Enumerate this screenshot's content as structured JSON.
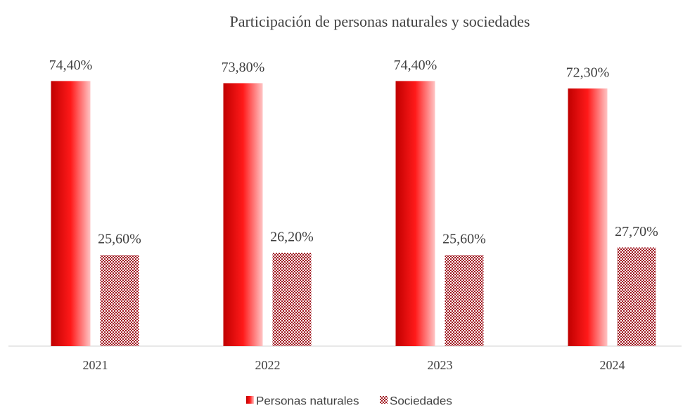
{
  "chart_data": {
    "type": "bar",
    "title": "Participación de personas naturales y sociedades",
    "categories": [
      "2021",
      "2022",
      "2023",
      "2024"
    ],
    "series": [
      {
        "name": "Personas naturales",
        "color": "#e00000",
        "values": [
          74.4,
          73.8,
          74.4,
          72.3
        ],
        "value_labels": [
          "74,40%",
          "73,80%",
          "74,40%",
          "72,30%"
        ]
      },
      {
        "name": "Sociedades",
        "color": "#a0141e",
        "values": [
          25.6,
          26.2,
          25.6,
          27.7
        ],
        "value_labels": [
          "25,60%",
          "26,20%",
          "25,60%",
          "27,70%"
        ]
      }
    ],
    "ylim": [
      0,
      80
    ],
    "legend": "bottom"
  }
}
